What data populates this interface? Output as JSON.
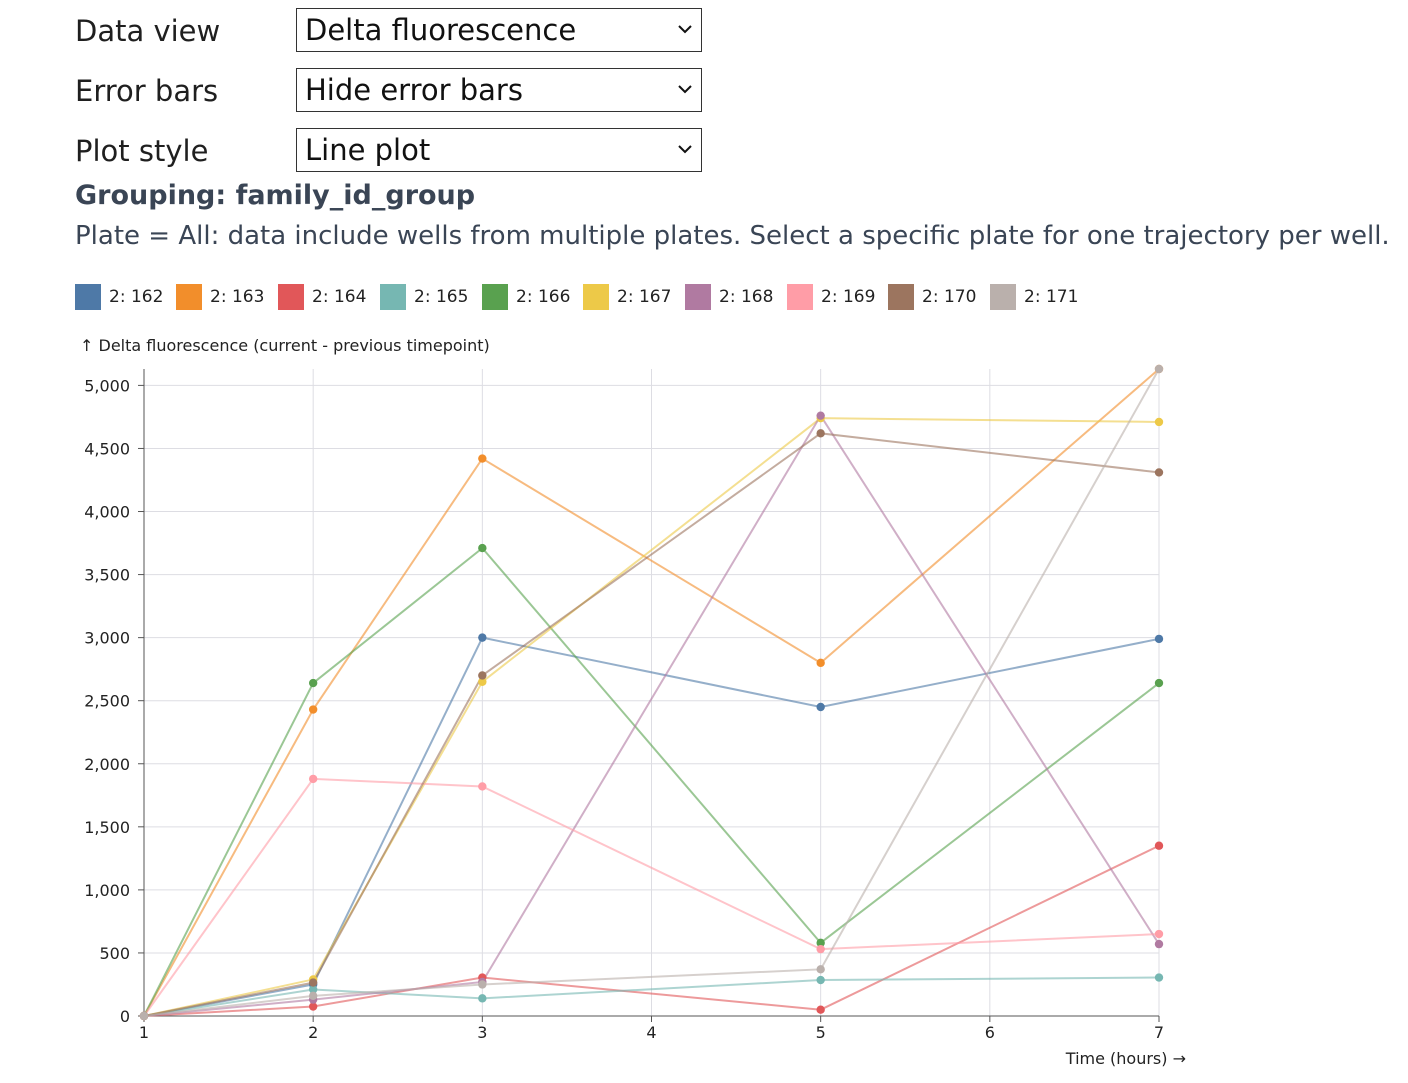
{
  "controls": {
    "data_view": {
      "label": "Data view",
      "value": "Delta fluorescence"
    },
    "error_bars": {
      "label": "Error bars",
      "value": "Hide error bars"
    },
    "plot_style": {
      "label": "Plot style",
      "value": "Line plot"
    }
  },
  "grouping_text": "Grouping: family_id_group",
  "note_text": "Plate = All: data include wells from multiple plates. Select a specific plate for one trajectory per well.",
  "chart_data": {
    "type": "line",
    "ylabel": "↑ Delta fluorescence (current - previous timepoint)",
    "xlabel": "Time (hours) →",
    "x": [
      1,
      2,
      3,
      5,
      7
    ],
    "xlim": [
      1,
      7
    ],
    "ylim": [
      0,
      5130
    ],
    "x_ticks": [
      1,
      2,
      3,
      4,
      5,
      6,
      7
    ],
    "y_ticks": [
      0,
      500,
      1000,
      1500,
      2000,
      2500,
      3000,
      3500,
      4000,
      4500,
      5000
    ],
    "y_tick_labels": [
      "0",
      "500",
      "1,000",
      "1,500",
      "2,000",
      "2,500",
      "3,000",
      "3,500",
      "4,000",
      "4,500",
      "5,000"
    ],
    "grid": true,
    "legend_position": "top",
    "series": [
      {
        "name": "2: 162",
        "color": "#4e79a7",
        "values": [
          0,
          250,
          3000,
          2450,
          2990
        ]
      },
      {
        "name": "2: 163",
        "color": "#f28e2b",
        "values": [
          0,
          2430,
          4420,
          2800,
          5130
        ]
      },
      {
        "name": "2: 164",
        "color": "#e15759",
        "values": [
          0,
          75,
          305,
          50,
          1350
        ]
      },
      {
        "name": "2: 165",
        "color": "#76b7b2",
        "values": [
          0,
          210,
          140,
          285,
          305
        ]
      },
      {
        "name": "2: 166",
        "color": "#59a14f",
        "values": [
          0,
          2640,
          3710,
          580,
          2640
        ]
      },
      {
        "name": "2: 167",
        "color": "#edc948",
        "values": [
          0,
          290,
          2650,
          4740,
          4710
        ]
      },
      {
        "name": "2: 168",
        "color": "#b07aa1",
        "values": [
          0,
          130,
          270,
          4760,
          570
        ]
      },
      {
        "name": "2: 169",
        "color": "#ff9da7",
        "values": [
          0,
          1880,
          1820,
          530,
          650
        ]
      },
      {
        "name": "2: 170",
        "color": "#9c755f",
        "values": [
          0,
          265,
          2700,
          4620,
          4310
        ]
      },
      {
        "name": "2: 171",
        "color": "#bab0ac",
        "values": [
          0,
          160,
          250,
          370,
          5130
        ]
      }
    ]
  }
}
